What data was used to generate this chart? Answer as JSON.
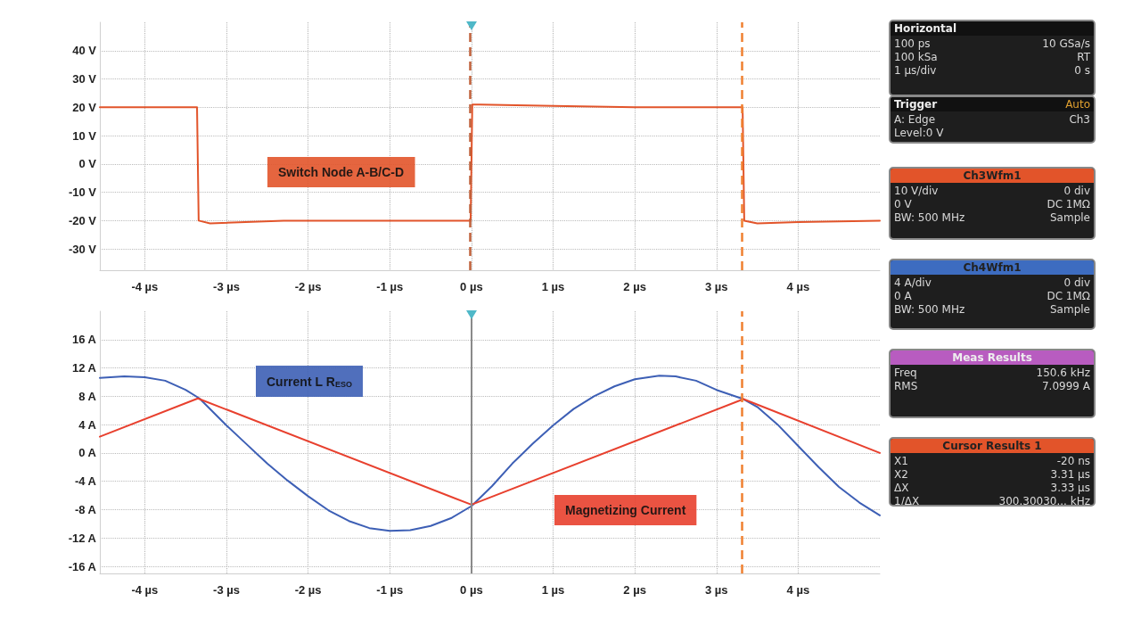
{
  "chart_data": [
    {
      "type": "line",
      "xlim": [
        -4.55,
        5
      ],
      "ylim": [
        -37.5,
        50
      ],
      "grid": true,
      "xticks": [
        {
          "value": -4,
          "label": "-4 µs"
        },
        {
          "value": -3,
          "label": "-3 µs"
        },
        {
          "value": -2,
          "label": "-2 µs"
        },
        {
          "value": -1,
          "label": "-1 µs"
        },
        {
          "value": 0,
          "label": "0 µs"
        },
        {
          "value": 1,
          "label": "1 µs"
        },
        {
          "value": 2,
          "label": "2 µs"
        },
        {
          "value": 3,
          "label": "3 µs"
        },
        {
          "value": 4,
          "label": "4 µs"
        }
      ],
      "yticks": [
        {
          "value": -30,
          "label": "-30 V"
        },
        {
          "value": -20,
          "label": "-20 V"
        },
        {
          "value": -10,
          "label": "-10 V"
        },
        {
          "value": 0,
          "label": "0 V"
        },
        {
          "value": 10,
          "label": "10 V"
        },
        {
          "value": 20,
          "label": "20 V"
        },
        {
          "value": 30,
          "label": "30 V"
        },
        {
          "value": 40,
          "label": "40 V"
        }
      ],
      "series": [
        {
          "name": "Switch Node A-B/C-D",
          "color": "#e2542a",
          "x": [
            -4.55,
            -3.36,
            -3.34,
            -3.2,
            -2.3,
            -0.01,
            0.01,
            0.1,
            1,
            2,
            3.3,
            3.32,
            3.34,
            3.5,
            4,
            5
          ],
          "values": [
            20,
            20,
            -20,
            -21,
            -20,
            -20,
            21,
            21,
            20.5,
            20,
            20,
            20,
            -20,
            -21,
            -20.5,
            -20
          ]
        }
      ],
      "ref_lines": [
        {
          "axis": "x",
          "value": -0.02,
          "color": "#c0603a",
          "line_style": "dashed"
        },
        {
          "axis": "x",
          "value": 3.31,
          "color": "#f08030",
          "line_style": "dashed"
        }
      ]
    },
    {
      "type": "line",
      "xlim": [
        -4.55,
        5
      ],
      "ylim": [
        -17,
        20
      ],
      "grid": true,
      "xticks": [
        {
          "value": -4,
          "label": "-4 µs"
        },
        {
          "value": -3,
          "label": "-3 µs"
        },
        {
          "value": -2,
          "label": "-2 µs"
        },
        {
          "value": -1,
          "label": "-1 µs"
        },
        {
          "value": 0,
          "label": "0 µs"
        },
        {
          "value": 1,
          "label": "1 µs"
        },
        {
          "value": 2,
          "label": "2 µs"
        },
        {
          "value": 3,
          "label": "3 µs"
        },
        {
          "value": 4,
          "label": "4 µs"
        }
      ],
      "yticks": [
        {
          "value": -16,
          "label": "-16 A"
        },
        {
          "value": -12,
          "label": "-12 A"
        },
        {
          "value": -8,
          "label": "-8 A"
        },
        {
          "value": -4,
          "label": "-4 A"
        },
        {
          "value": 0,
          "label": "0 A"
        },
        {
          "value": 4,
          "label": "4 A"
        },
        {
          "value": 8,
          "label": "8 A"
        },
        {
          "value": 12,
          "label": "12 A"
        },
        {
          "value": 16,
          "label": "16 A"
        }
      ],
      "series": [
        {
          "name": "Current L R$_{ESO}$",
          "color": "#3d5fb5",
          "x": [
            -4.55,
            -4.25,
            -4,
            -3.75,
            -3.5,
            -3.33,
            -3,
            -2.75,
            -2.5,
            -2.25,
            -2,
            -1.75,
            -1.5,
            -1.25,
            -1,
            -0.75,
            -0.5,
            -0.25,
            0,
            0.25,
            0.5,
            0.75,
            1,
            1.25,
            1.5,
            1.75,
            2,
            2.3,
            2.5,
            2.75,
            3,
            3.33,
            3.5,
            3.75,
            4,
            4.25,
            4.5,
            4.75,
            5
          ],
          "values": [
            10.6,
            10.8,
            10.7,
            10.2,
            8.9,
            7.7,
            3.9,
            1.2,
            -1.5,
            -3.9,
            -6.1,
            -8.1,
            -9.6,
            -10.6,
            -11,
            -10.9,
            -10.3,
            -9.2,
            -7.5,
            -4.7,
            -1.5,
            1.3,
            3.9,
            6.2,
            8,
            9.4,
            10.4,
            10.9,
            10.8,
            10.2,
            8.9,
            7.6,
            6.5,
            4,
            1,
            -2,
            -4.8,
            -7,
            -8.8
          ]
        },
        {
          "name": "Magnetizing Current",
          "color": "#e8402e",
          "x": [
            -4.55,
            -3.35,
            0,
            3.33,
            5
          ],
          "values": [
            2.3,
            7.7,
            -7.3,
            7.6,
            0
          ]
        }
      ],
      "ref_lines": [
        {
          "axis": "x",
          "value": 0,
          "color": "#8a8a8a",
          "line_style": "solid"
        },
        {
          "axis": "x",
          "value": 3.31,
          "color": "#f08030",
          "line_style": "dashed"
        }
      ]
    },
    {
      "type": "other",
      "title": "Horizontal",
      "annotations": [
        "100 ps",
        "10 GSa/s",
        "100 kSa",
        "RT",
        "1 µs/div",
        "0 s"
      ]
    },
    {
      "type": "other",
      "title": "Trigger",
      "subtitle": "Auto",
      "annotations": [
        "A: Edge",
        "Ch3",
        "Level:0 V"
      ]
    },
    {
      "type": "other",
      "title": "Ch3Wfm1",
      "annotations": [
        "10 V/div",
        "0 div",
        "0 V",
        "DC 1MΩ",
        "BW: 500 MHz",
        "Sample"
      ]
    },
    {
      "type": "other",
      "title": "Ch4Wfm1",
      "annotations": [
        "4 A/div",
        "0 div",
        "0 A",
        "DC 1MΩ",
        "BW: 500 MHz",
        "Sample"
      ]
    },
    {
      "type": "other",
      "title": "Meas Results",
      "annotations": [
        "Freq",
        "150.6 kHz",
        "RMS",
        "7.0999 A"
      ]
    },
    {
      "type": "other",
      "title": "Cursor Results 1",
      "annotations": [
        "X1",
        "-20 ns",
        "X2",
        "3.31 µs",
        "ΔX",
        "3.33 µs",
        "1/ΔX",
        "300.30030... kHz"
      ]
    }
  ]
}
